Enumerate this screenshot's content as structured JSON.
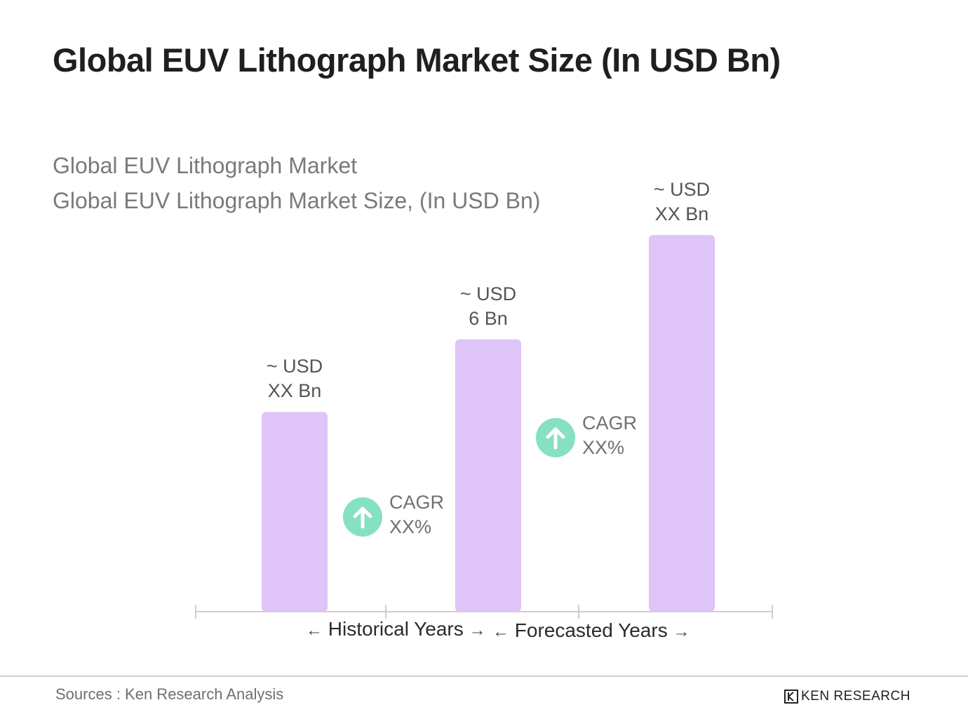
{
  "header": {
    "title": "Global EUV Lithograph Market Size (In USD Bn)",
    "subtitle_1": "Global EUV Lithograph Market",
    "subtitle_2": "Global EUV Lithograph Market Size, (In USD Bn)"
  },
  "chart_data": {
    "type": "bar",
    "categories": [
      "",
      "",
      ""
    ],
    "values": [
      4.4,
      6,
      8.3
    ],
    "data_labels": [
      {
        "line1": "~  USD",
        "line2": "XX Bn"
      },
      {
        "line1": "~  USD",
        "line2": "6 Bn"
      },
      {
        "line1": "~ USD",
        "line2": "XX Bn"
      }
    ],
    "bar_color": "#dfc4f7",
    "cagr": [
      {
        "line1": "CAGR",
        "line2": "XX%"
      },
      {
        "line1": "CAGR",
        "line2": "XX%"
      }
    ],
    "cagr_color": "#86e0c4",
    "ylim": [
      0,
      8.3
    ],
    "periods": {
      "historical": "Historical Years",
      "forecasted": "Forecasted Years"
    },
    "grid": false
  },
  "footer": {
    "source": "Sources : Ken Research Analysis",
    "logo_text": "KEN RESEARCH"
  }
}
